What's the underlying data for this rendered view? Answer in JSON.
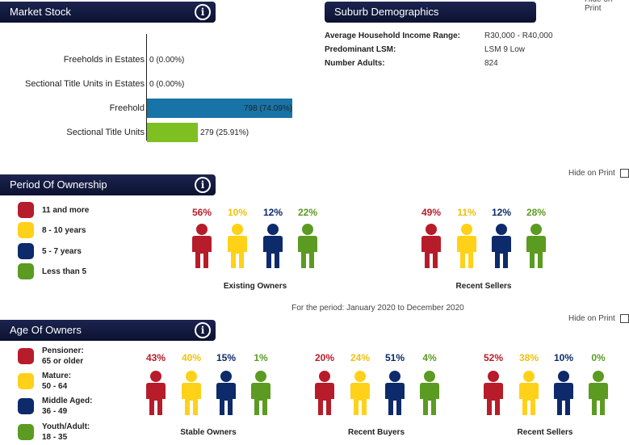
{
  "colors": {
    "red": "#b71c2a",
    "yellow": "#ffd118",
    "navy": "#0d2a6b",
    "green": "#5b9b21",
    "blue_bar": "#1874a6",
    "green_bar": "#7ec021"
  },
  "header_info_icon": "i",
  "market_stock": {
    "title": "Market Stock",
    "rows": [
      {
        "label": "Freeholds in Estates",
        "value": 0,
        "display": "0 (0.00%)"
      },
      {
        "label": "Sectional Title Units in Estates",
        "value": 0,
        "display": "0 (0.00%)"
      },
      {
        "label": "Freehold",
        "value": 798,
        "display": "798 (74.09%)"
      },
      {
        "label": "Sectional Title Units",
        "value": 279,
        "display": "279 (25.91%)"
      }
    ]
  },
  "demographics": {
    "title": "Suburb Demographics",
    "hide_label": "Hide on Print",
    "items": [
      {
        "key": "Average Household Income Range:",
        "value": "R30,000 - R40,000"
      },
      {
        "key": "Predominant LSM:",
        "value": "LSM 9 Low"
      },
      {
        "key": "Number Adults:",
        "value": "824"
      }
    ]
  },
  "ownership": {
    "title": "Period Of Ownership",
    "hide_label": "Hide on Print",
    "legend": [
      "11 and more",
      "8 - 10 years",
      "5 - 7 years",
      "Less than 5"
    ],
    "groups": [
      {
        "label": "Existing Owners",
        "values": [
          "56%",
          "10%",
          "12%",
          "22%"
        ]
      },
      {
        "label": "Recent Sellers",
        "values": [
          "49%",
          "11%",
          "12%",
          "28%"
        ]
      }
    ],
    "period_text": "For the period: January 2020 to December 2020"
  },
  "age": {
    "title": "Age Of Owners",
    "hide_label": "Hide on Print",
    "legend": [
      {
        "l1": "Pensioner:",
        "l2": "65 or older"
      },
      {
        "l1": "Mature:",
        "l2": "50 - 64"
      },
      {
        "l1": "Middle Aged:",
        "l2": "36 - 49"
      },
      {
        "l1": "Youth/Adult:",
        "l2": "18 - 35"
      }
    ],
    "groups": [
      {
        "label": "Stable Owners",
        "values": [
          "43%",
          "40%",
          "15%",
          "1%"
        ]
      },
      {
        "label": "Recent Buyers",
        "values": [
          "20%",
          "24%",
          "51%",
          "4%"
        ]
      },
      {
        "label": "Recent Sellers",
        "values": [
          "52%",
          "38%",
          "10%",
          "0%"
        ]
      }
    ]
  }
}
